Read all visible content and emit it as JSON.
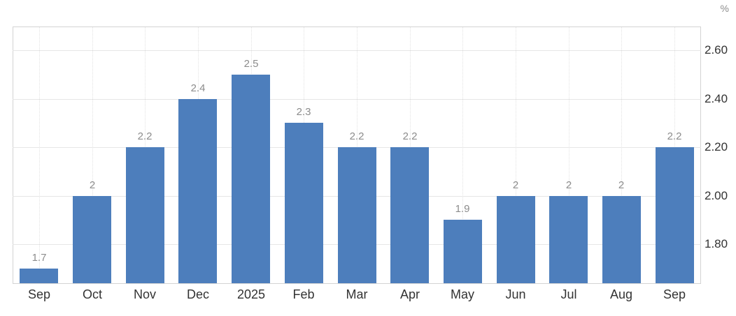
{
  "chart_data": {
    "type": "bar",
    "title": "",
    "categories": [
      "Sep",
      "Oct",
      "Nov",
      "Dec",
      "2025",
      "Feb",
      "Mar",
      "Apr",
      "May",
      "Jun",
      "Jul",
      "Aug",
      "Sep"
    ],
    "values": [
      1.7,
      2,
      2.2,
      2.4,
      2.5,
      2.3,
      2.2,
      2.2,
      1.9,
      2,
      2,
      2,
      2.2
    ],
    "value_labels": [
      "1.7",
      "2",
      "2.2",
      "2.4",
      "2.5",
      "2.3",
      "2.2",
      "2.2",
      "1.9",
      "2",
      "2",
      "2",
      "2.2"
    ],
    "xlabel": "",
    "ylabel": "%",
    "y_axis_side": "right",
    "ytick_values": [
      1.8,
      2.0,
      2.2,
      2.4,
      2.6
    ],
    "ytick_labels": [
      "1.80",
      "2.00",
      "2.20",
      "2.40",
      "2.60"
    ],
    "ylim": [
      1.636,
      2.698
    ],
    "grid": true,
    "legend": "none",
    "colors": {
      "bar": "#4d7ebc",
      "value_label": "#8c8c8c",
      "axis_label": "#333333",
      "unit_label": "#8c8c8c",
      "h_gridline": "#e6e6e6",
      "v_gridline": "#e2e2e2",
      "plot_border": "#d3d3d3",
      "background": "#ffffff"
    }
  }
}
